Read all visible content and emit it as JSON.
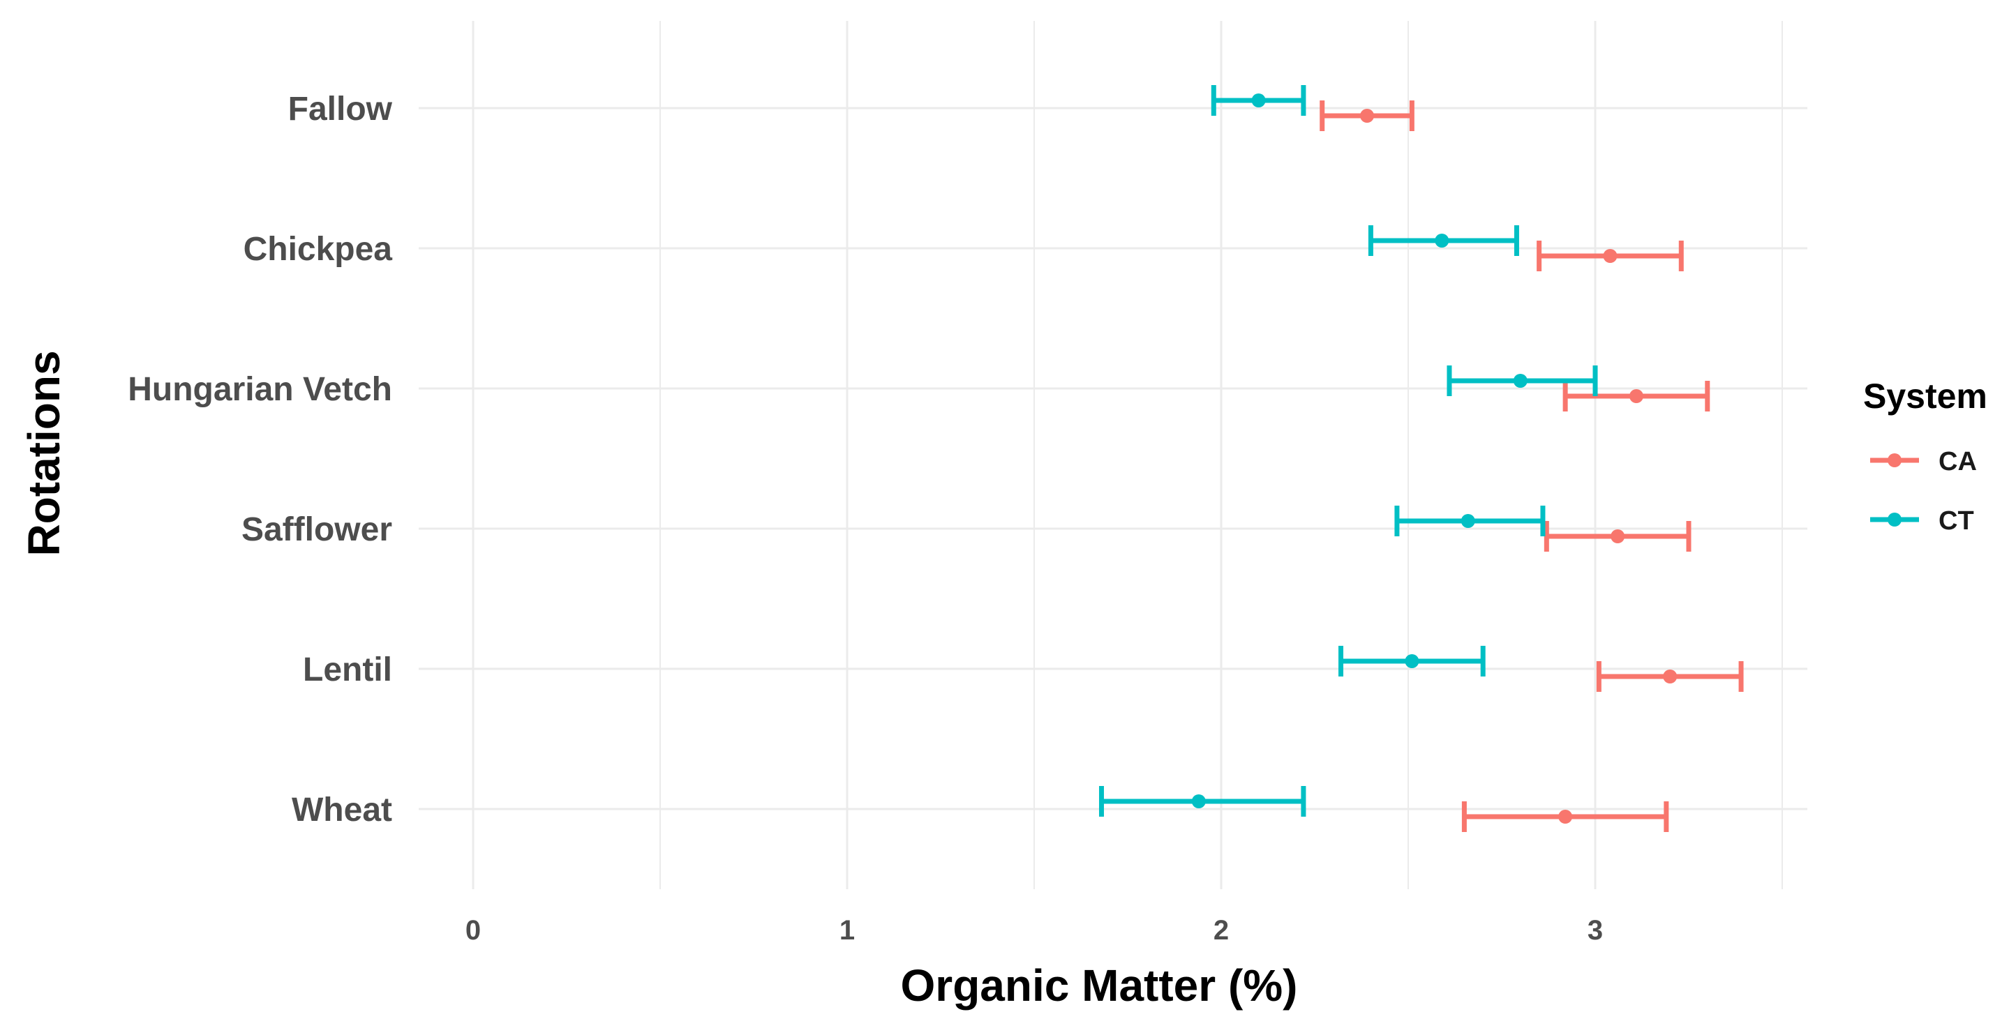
{
  "chart_data": {
    "type": "errorbar",
    "title": "",
    "xlabel": "Organic Matter (%)",
    "ylabel": "Rotations",
    "xlim": [
      -0.12,
      3.56
    ],
    "xticks": [
      "0",
      "1",
      "2",
      "3"
    ],
    "grid": true,
    "categories": [
      "Fallow",
      "Chickpea",
      "Hungarian Vetch",
      "Safflower",
      "Lentil",
      "Wheat"
    ],
    "legend": {
      "title": "System",
      "position": "right"
    },
    "series": [
      {
        "name": "CA",
        "color": "#F8766D",
        "points": [
          {
            "category": "Fallow",
            "mean": 2.39,
            "lower": 2.27,
            "upper": 2.51
          },
          {
            "category": "Chickpea",
            "mean": 3.04,
            "lower": 2.85,
            "upper": 3.23
          },
          {
            "category": "Hungarian Vetch",
            "mean": 3.11,
            "lower": 2.92,
            "upper": 3.3
          },
          {
            "category": "Safflower",
            "mean": 3.06,
            "lower": 2.87,
            "upper": 3.25
          },
          {
            "category": "Lentil",
            "mean": 3.2,
            "lower": 3.01,
            "upper": 3.39
          },
          {
            "category": "Wheat",
            "mean": 2.92,
            "lower": 2.65,
            "upper": 3.19
          }
        ]
      },
      {
        "name": "CT",
        "color": "#00BFC4",
        "points": [
          {
            "category": "Fallow",
            "mean": 2.1,
            "lower": 1.98,
            "upper": 2.22
          },
          {
            "category": "Chickpea",
            "mean": 2.59,
            "lower": 2.4,
            "upper": 2.79
          },
          {
            "category": "Hungarian Vetch",
            "mean": 2.8,
            "lower": 2.61,
            "upper": 3.0
          },
          {
            "category": "Safflower",
            "mean": 2.66,
            "lower": 2.47,
            "upper": 2.86
          },
          {
            "category": "Lentil",
            "mean": 2.51,
            "lower": 2.32,
            "upper": 2.7
          },
          {
            "category": "Wheat",
            "mean": 1.94,
            "lower": 1.68,
            "upper": 2.22
          }
        ]
      }
    ]
  }
}
